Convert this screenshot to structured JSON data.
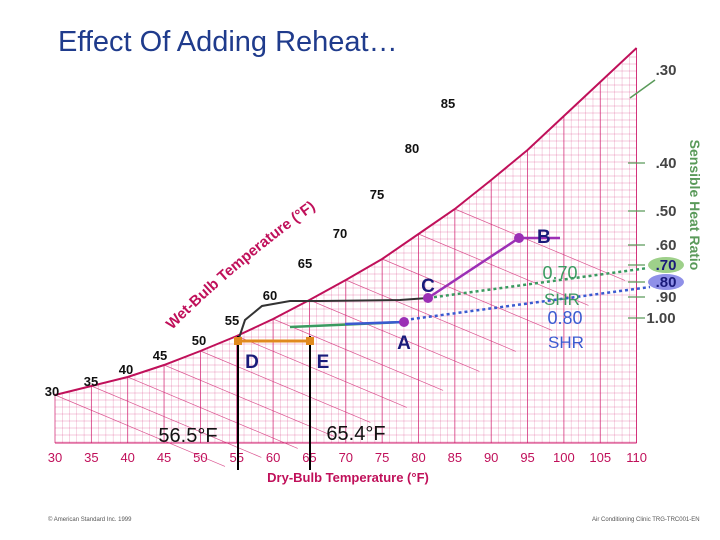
{
  "slide": {
    "title": "Effect Of Adding Reheat…",
    "footer_left": "© American Standard Inc. 1999",
    "footer_right": "Air Conditioning Clinic TRG-TRC001-EN"
  },
  "colors": {
    "grid": "#d0206f",
    "saturation": "#c0105a",
    "label": "#c0105a",
    "shr_scale": "#5a9a5a",
    "process_purple": "#9b2fb5",
    "process_black": "#333333",
    "process_green": "#3a9a60",
    "process_blue": "#3a5ad0",
    "reheat_orange": "#e08a1e",
    "point_label": "#1a1a7a"
  },
  "chart_data": {
    "type": "psychrometric",
    "xlabel": "Dry-Bulb Temperature (°F)",
    "x_ticks": [
      30,
      35,
      40,
      45,
      50,
      55,
      60,
      65,
      70,
      75,
      80,
      85,
      90,
      95,
      100,
      105,
      110
    ],
    "wet_bulb_label": "Wet-Bulb Temperature (°F)",
    "wet_bulb_ticks": [
      30,
      35,
      40,
      45,
      50,
      55,
      60,
      65,
      70,
      75,
      80,
      85
    ],
    "shr_title": "Sensible Heat Ratio",
    "shr_ticks": [
      ".30",
      ".40",
      ".50",
      ".60",
      ".70",
      ".80",
      ".90",
      "1.00"
    ],
    "shr_highlighted": [
      ".70",
      ".80"
    ],
    "points": [
      {
        "label": "B",
        "db": 95
      },
      {
        "label": "C",
        "db": 81
      },
      {
        "label": "A",
        "db": 79
      },
      {
        "label": "D",
        "db": 56.5
      },
      {
        "label": "E",
        "db": 65.4
      }
    ],
    "shr_lines": [
      {
        "label": "0.70 SHR",
        "shr": 0.7
      },
      {
        "label": "0.80 SHR",
        "shr": 0.8
      }
    ],
    "temperature_markers": [
      {
        "label": "56.5°F",
        "db": 56.5
      },
      {
        "label": "65.4°F",
        "db": 65.4
      }
    ]
  }
}
